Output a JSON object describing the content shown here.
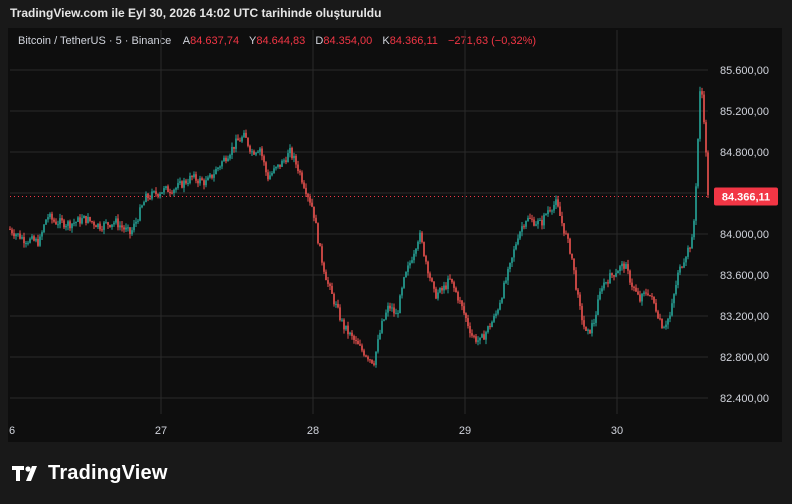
{
  "header": {
    "title": "TradingView.com ile Eyl 30, 2026 14:02 UTC tarihinde oluşturuldu"
  },
  "infobar": {
    "symbol": "Bitcoin / TetherUS · 5 · Binance",
    "open_label": "A",
    "open": "84.637,74",
    "high_label": "Y",
    "high": "84.644,83",
    "low_label": "D",
    "low": "84.354,00",
    "close_label": "K",
    "close": "84.366,11",
    "change": "−271,63 (−0,32%)"
  },
  "footer": {
    "brand": "TradingView",
    "logo_icon": "tradingview-logo-icon"
  },
  "colors": {
    "up": "#26a69a",
    "down": "#ef5350",
    "price_tag": "#f23645",
    "background": "#0e0e0e",
    "grid": "#2a2a2a"
  },
  "chart_data": {
    "type": "candlestick",
    "timeframe": "5",
    "exchange": "Binance",
    "x_ticks": [
      "6",
      "27",
      "28",
      "29",
      "30"
    ],
    "y_ticks": [
      "85.600,00",
      "85.200,00",
      "84.800,00",
      "84.400,00",
      "84.000,00",
      "83.600,00",
      "83.200,00",
      "82.800,00",
      "82.400,00"
    ],
    "ylim": [
      82280,
      85950
    ],
    "last_price": 84366.11,
    "last_price_label": "84.366,11",
    "grid": true,
    "approx_close_path": [
      [
        26.0,
        84050
      ],
      [
        26.1,
        83950
      ],
      [
        26.2,
        83920
      ],
      [
        26.25,
        84180
      ],
      [
        26.3,
        84120
      ],
      [
        26.4,
        84100
      ],
      [
        26.5,
        84150
      ],
      [
        26.6,
        84080
      ],
      [
        26.7,
        84120
      ],
      [
        26.8,
        84000
      ],
      [
        26.9,
        84350
      ],
      [
        27.0,
        84420
      ],
      [
        27.1,
        84450
      ],
      [
        27.2,
        84550
      ],
      [
        27.3,
        84500
      ],
      [
        27.4,
        84700
      ],
      [
        27.5,
        84900
      ],
      [
        27.55,
        84950
      ],
      [
        27.6,
        84800
      ],
      [
        27.65,
        84850
      ],
      [
        27.7,
        84550
      ],
      [
        27.8,
        84700
      ],
      [
        27.85,
        84800
      ],
      [
        27.9,
        84650
      ],
      [
        28.0,
        84250
      ],
      [
        28.05,
        83800
      ],
      [
        28.1,
        83500
      ],
      [
        28.15,
        83300
      ],
      [
        28.2,
        83100
      ],
      [
        28.3,
        82900
      ],
      [
        28.4,
        82750
      ],
      [
        28.45,
        83100
      ],
      [
        28.5,
        83300
      ],
      [
        28.55,
        83200
      ],
      [
        28.6,
        83550
      ],
      [
        28.7,
        84000
      ],
      [
        28.75,
        83700
      ],
      [
        28.8,
        83400
      ],
      [
        28.85,
        83450
      ],
      [
        28.9,
        83550
      ],
      [
        28.95,
        83400
      ],
      [
        29.0,
        83200
      ],
      [
        29.05,
        83000
      ],
      [
        29.1,
        82950
      ],
      [
        29.2,
        83200
      ],
      [
        29.3,
        83700
      ],
      [
        29.35,
        84000
      ],
      [
        29.4,
        84150
      ],
      [
        29.5,
        84100
      ],
      [
        29.55,
        84250
      ],
      [
        29.6,
        84300
      ],
      [
        29.65,
        84050
      ],
      [
        29.7,
        83800
      ],
      [
        29.75,
        83300
      ],
      [
        29.8,
        83000
      ],
      [
        29.85,
        83150
      ],
      [
        29.9,
        83500
      ],
      [
        30.0,
        83650
      ],
      [
        30.05,
        83700
      ],
      [
        30.1,
        83500
      ],
      [
        30.15,
        83350
      ],
      [
        30.2,
        83450
      ],
      [
        30.25,
        83300
      ],
      [
        30.3,
        83100
      ],
      [
        30.35,
        83200
      ],
      [
        30.4,
        83600
      ],
      [
        30.45,
        83800
      ],
      [
        30.5,
        83950
      ],
      [
        30.52,
        84500
      ],
      [
        30.55,
        85500
      ],
      [
        30.57,
        85200
      ],
      [
        30.6,
        84366
      ]
    ]
  }
}
